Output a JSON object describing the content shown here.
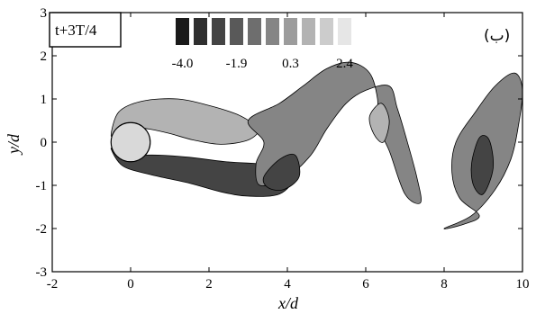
{
  "chart_data": {
    "type": "contour",
    "xlabel": "x/d",
    "ylabel": "y/d",
    "xlim": [
      -2,
      10
    ],
    "ylim": [
      -3,
      3
    ],
    "xticks": [
      -2,
      0,
      2,
      4,
      6,
      8,
      10
    ],
    "yticks": [
      -3,
      -2,
      -1,
      0,
      1,
      2,
      3
    ],
    "time_label": "t+3T/4",
    "panel_label": "(ب)",
    "legend": {
      "levels": 10,
      "colors": [
        "#1a1a1a",
        "#2f2f2f",
        "#444444",
        "#595959",
        "#6e6e6e",
        "#858585",
        "#9c9c9c",
        "#b3b3b3",
        "#cccccc",
        "#e6e6e6"
      ],
      "tick_labels": [
        "-4.0",
        "-1.9",
        "0.3",
        "2.4"
      ],
      "tick_level_index": [
        0,
        3,
        6,
        9
      ]
    },
    "cylinder": {
      "center": [
        0,
        0
      ],
      "diameter": 1
    },
    "regions": [
      {
        "name": "upper-shear-layer",
        "level": 7,
        "points": [
          [
            -0.5,
            0.15
          ],
          [
            -0.3,
            0.7
          ],
          [
            0.3,
            0.95
          ],
          [
            1.2,
            1.0
          ],
          [
            2.0,
            0.85
          ],
          [
            2.7,
            0.65
          ],
          [
            3.1,
            0.45
          ],
          [
            3.3,
            0.3
          ],
          [
            3.0,
            0.05
          ],
          [
            2.3,
            -0.05
          ],
          [
            1.6,
            0.05
          ],
          [
            1.0,
            0.2
          ],
          [
            0.5,
            0.3
          ],
          [
            0,
            0.35
          ],
          [
            -0.3,
            0.3
          ]
        ]
      },
      {
        "name": "lower-shear-layer",
        "level": 2,
        "points": [
          [
            -0.5,
            -0.15
          ],
          [
            -0.2,
            -0.55
          ],
          [
            0.5,
            -0.75
          ],
          [
            1.5,
            -0.95
          ],
          [
            2.3,
            -1.15
          ],
          [
            3.0,
            -1.25
          ],
          [
            3.8,
            -1.2
          ],
          [
            4.2,
            -0.8
          ],
          [
            4.0,
            -0.55
          ],
          [
            3.3,
            -0.5
          ],
          [
            2.4,
            -0.45
          ],
          [
            1.5,
            -0.35
          ],
          [
            0.7,
            -0.3
          ],
          [
            0,
            -0.3
          ],
          [
            -0.3,
            -0.25
          ]
        ]
      },
      {
        "name": "wake-band",
        "level": 5,
        "points": [
          [
            3.0,
            0.5
          ],
          [
            3.8,
            0.9
          ],
          [
            4.4,
            1.3
          ],
          [
            5.0,
            1.7
          ],
          [
            5.6,
            1.85
          ],
          [
            6.1,
            1.6
          ],
          [
            6.3,
            1.0
          ],
          [
            6.3,
            0.4
          ],
          [
            6.6,
            -0.2
          ],
          [
            7.0,
            -1.2
          ],
          [
            7.4,
            -1.4
          ],
          [
            7.3,
            -0.8
          ],
          [
            7.0,
            0.2
          ],
          [
            6.8,
            0.8
          ],
          [
            6.6,
            1.3
          ],
          [
            6.0,
            1.2
          ],
          [
            5.5,
            0.9
          ],
          [
            5.0,
            0.3
          ],
          [
            4.6,
            -0.3
          ],
          [
            4.0,
            -0.8
          ],
          [
            3.3,
            -1.0
          ],
          [
            3.2,
            -0.5
          ],
          [
            3.4,
            0.0
          ]
        ]
      },
      {
        "name": "far-wake-vortex",
        "level": 5,
        "points": [
          [
            8.0,
            -2.0
          ],
          [
            8.7,
            -1.7
          ],
          [
            9.3,
            -1.1
          ],
          [
            9.7,
            -0.4
          ],
          [
            9.9,
            0.4
          ],
          [
            10.0,
            1.2
          ],
          [
            9.8,
            1.6
          ],
          [
            9.3,
            1.3
          ],
          [
            8.8,
            0.7
          ],
          [
            8.3,
            0.0
          ],
          [
            8.2,
            -0.7
          ],
          [
            8.4,
            -1.3
          ],
          [
            8.9,
            -1.7
          ],
          [
            8.5,
            -1.9
          ]
        ]
      },
      {
        "name": "upper-vortex-core",
        "level": 7,
        "points": [
          [
            6.1,
            0.6
          ],
          [
            6.4,
            0.9
          ],
          [
            6.6,
            0.5
          ],
          [
            6.45,
            0.0
          ],
          [
            6.2,
            0.2
          ]
        ]
      },
      {
        "name": "lower-vortex-core",
        "level": 2,
        "points": [
          [
            3.4,
            -0.8
          ],
          [
            3.8,
            -0.4
          ],
          [
            4.2,
            -0.3
          ],
          [
            4.3,
            -0.8
          ],
          [
            3.9,
            -1.1
          ],
          [
            3.5,
            -1.05
          ]
        ]
      },
      {
        "name": "far-vortex-core",
        "level": 2,
        "points": [
          [
            8.7,
            -0.5
          ],
          [
            8.9,
            0.1
          ],
          [
            9.15,
            0.05
          ],
          [
            9.25,
            -0.6
          ],
          [
            9.0,
            -1.2
          ],
          [
            8.75,
            -1.0
          ]
        ]
      }
    ]
  }
}
